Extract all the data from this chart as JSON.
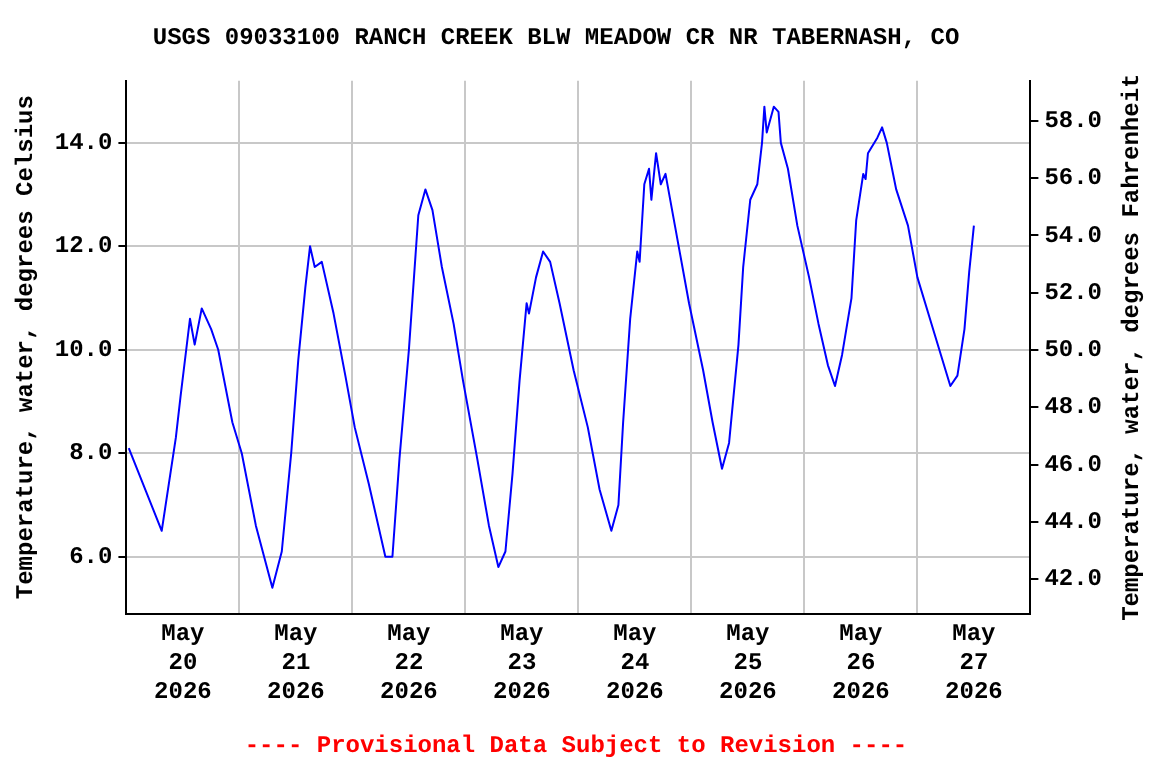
{
  "chart_data": {
    "type": "line",
    "title": "USGS 09033100 RANCH CREEK BLW MEADOW CR NR TABERNASH, CO",
    "ylabel": "Temperature, water, degrees Celsius",
    "y2label": "Temperature, water, degrees Fahrenheit",
    "annotations": [
      "---- Provisional Data Subject to Revision ----"
    ],
    "xlim": [
      "2026-05-20T00:00",
      "2026-05-28T00:00"
    ],
    "xticks": [
      {
        "value": "2026-05-20T00:00",
        "label": null
      },
      {
        "value": "2026-05-20T12:00",
        "label": "May 20 2026"
      },
      {
        "value": "2026-05-21T00:00",
        "label": null
      },
      {
        "value": "2026-05-21T12:00",
        "label": "May 21 2026"
      },
      {
        "value": "2026-05-22T00:00",
        "label": null
      },
      {
        "value": "2026-05-22T12:00",
        "label": "May 22 2026"
      },
      {
        "value": "2026-05-23T00:00",
        "label": null
      },
      {
        "value": "2026-05-23T12:00",
        "label": "May 23 2026"
      },
      {
        "value": "2026-05-24T00:00",
        "label": null
      },
      {
        "value": "2026-05-24T12:00",
        "label": "May 24 2026"
      },
      {
        "value": "2026-05-25T00:00",
        "label": null
      },
      {
        "value": "2026-05-25T12:00",
        "label": "May 25 2026"
      },
      {
        "value": "2026-05-26T00:00",
        "label": null
      },
      {
        "value": "2026-05-26T12:00",
        "label": "May 26 2026"
      },
      {
        "value": "2026-05-27T00:00",
        "label": null
      },
      {
        "value": "2026-05-27T12:00",
        "label": "May 27 2026"
      }
    ],
    "ylim": [
      4.9,
      15.2
    ],
    "yticks": [
      {
        "value": 6,
        "label": "6.0"
      },
      {
        "value": 8,
        "label": "8.0"
      },
      {
        "value": 10,
        "label": "10.0"
      },
      {
        "value": 12,
        "label": "12.0"
      },
      {
        "value": 14,
        "label": "14.0"
      }
    ],
    "y2lim": [
      40.8,
      59.4
    ],
    "y2ticks": [
      {
        "value": 42,
        "label": "42.0"
      },
      {
        "value": 44,
        "label": "44.0"
      },
      {
        "value": 46,
        "label": "46.0"
      },
      {
        "value": 48,
        "label": "48.0"
      },
      {
        "value": 50,
        "label": "50.0"
      },
      {
        "value": 52,
        "label": "52.0"
      },
      {
        "value": 54,
        "label": "54.0"
      },
      {
        "value": 56,
        "label": "56.0"
      },
      {
        "value": 58,
        "label": "58.0"
      }
    ],
    "grid": true,
    "legend": false,
    "marker": "none",
    "line_style": "solid",
    "series": [
      {
        "color": "#0000ff",
        "x": [
          "2026-05-20T00:30",
          "2026-05-20T07:30",
          "2026-05-20T10:30",
          "2026-05-20T11:30",
          "2026-05-20T13:30",
          "2026-05-20T14:30",
          "2026-05-20T16:00",
          "2026-05-20T18:00",
          "2026-05-20T19:30",
          "2026-05-20T22:30",
          "2026-05-21T00:30",
          "2026-05-21T03:30",
          "2026-05-21T07:00",
          "2026-05-21T09:00",
          "2026-05-21T11:00",
          "2026-05-21T12:30",
          "2026-05-21T14:00",
          "2026-05-21T15:00",
          "2026-05-21T16:00",
          "2026-05-21T17:30",
          "2026-05-21T20:00",
          "2026-05-21T22:30",
          "2026-05-22T00:30",
          "2026-05-22T03:30",
          "2026-05-22T07:00",
          "2026-05-22T08:30",
          "2026-05-22T10:00",
          "2026-05-22T12:00",
          "2026-05-22T14:00",
          "2026-05-22T15:30",
          "2026-05-22T17:00",
          "2026-05-22T19:00",
          "2026-05-22T21:30",
          "2026-05-22T23:30",
          "2026-05-23T02:30",
          "2026-05-23T05:00",
          "2026-05-23T07:00",
          "2026-05-23T08:30",
          "2026-05-23T10:00",
          "2026-05-23T11:30",
          "2026-05-23T13:00",
          "2026-05-23T13:30",
          "2026-05-23T15:00",
          "2026-05-23T16:30",
          "2026-05-23T18:00",
          "2026-05-23T20:00",
          "2026-05-23T23:00",
          "2026-05-24T02:00",
          "2026-05-24T04:30",
          "2026-05-24T07:00",
          "2026-05-24T08:30",
          "2026-05-24T09:30",
          "2026-05-24T11:00",
          "2026-05-24T12:30",
          "2026-05-24T13:00",
          "2026-05-24T14:00",
          "2026-05-24T15:00",
          "2026-05-24T15:30",
          "2026-05-24T16:30",
          "2026-05-24T17:30",
          "2026-05-24T18:30",
          "2026-05-24T20:30",
          "2026-05-24T23:30",
          "2026-05-25T02:30",
          "2026-05-25T04:30",
          "2026-05-25T06:30",
          "2026-05-25T08:00",
          "2026-05-25T10:00",
          "2026-05-25T11:00",
          "2026-05-25T12:30",
          "2026-05-25T14:00",
          "2026-05-25T15:00",
          "2026-05-25T15:30",
          "2026-05-25T16:00",
          "2026-05-25T17:30",
          "2026-05-25T18:30",
          "2026-05-25T19:00",
          "2026-05-25T20:30",
          "2026-05-25T22:30",
          "2026-05-26T01:00",
          "2026-05-26T03:00",
          "2026-05-26T05:00",
          "2026-05-26T06:30",
          "2026-05-26T08:00",
          "2026-05-26T10:00",
          "2026-05-26T11:00",
          "2026-05-26T12:30",
          "2026-05-26T13:00",
          "2026-05-26T13:30",
          "2026-05-26T15:30",
          "2026-05-26T16:30",
          "2026-05-26T17:30",
          "2026-05-26T19:30",
          "2026-05-26T22:00",
          "2026-05-27T00:00",
          "2026-05-27T03:00",
          "2026-05-27T05:00",
          "2026-05-27T07:00",
          "2026-05-27T08:30",
          "2026-05-27T10:00",
          "2026-05-27T11:00",
          "2026-05-27T12:00"
        ],
        "values": [
          8.1,
          6.5,
          8.3,
          9.1,
          10.6,
          10.1,
          10.8,
          10.4,
          10.0,
          8.6,
          8.0,
          6.6,
          5.4,
          6.1,
          8.0,
          9.8,
          11.2,
          12.0,
          11.6,
          11.7,
          10.7,
          9.5,
          8.5,
          7.4,
          6.0,
          6.0,
          7.9,
          10.0,
          12.6,
          13.1,
          12.7,
          11.6,
          10.5,
          9.4,
          7.9,
          6.6,
          5.8,
          6.1,
          7.6,
          9.4,
          10.9,
          10.7,
          11.4,
          11.9,
          11.7,
          10.9,
          9.6,
          8.5,
          7.3,
          6.5,
          7.0,
          8.6,
          10.6,
          11.9,
          11.7,
          13.2,
          13.5,
          12.9,
          13.8,
          13.2,
          13.4,
          12.4,
          10.9,
          9.6,
          8.6,
          7.7,
          8.2,
          10.1,
          11.6,
          12.9,
          13.2,
          14.0,
          14.7,
          14.2,
          14.7,
          14.6,
          14.0,
          13.5,
          12.4,
          11.4,
          10.5,
          9.7,
          9.3,
          9.9,
          11.0,
          12.5,
          13.4,
          13.3,
          13.8,
          14.1,
          14.3,
          14.0,
          13.1,
          12.4,
          11.4,
          10.5,
          9.9,
          9.3,
          9.5,
          10.4,
          11.5,
          12.4
        ]
      }
    ]
  }
}
